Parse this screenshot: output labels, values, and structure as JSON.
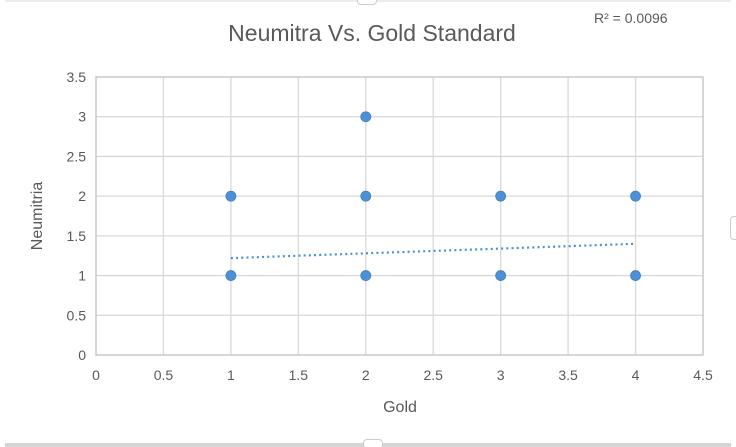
{
  "chart_data": {
    "type": "scatter",
    "title": "Neumitra Vs. Gold Standard",
    "annotation_r2": "R² = 0.0096",
    "xlabel": "Gold",
    "ylabel": "Neumitria",
    "xlim": [
      0,
      4.5
    ],
    "ylim": [
      0,
      3.5
    ],
    "xticks": [
      "0",
      "0.5",
      "1",
      "1.5",
      "2",
      "2.5",
      "3",
      "3.5",
      "4",
      "4.5"
    ],
    "yticks": [
      "0",
      "0.5",
      "1",
      "1.5",
      "2",
      "2.5",
      "3",
      "3.5"
    ],
    "grid": true,
    "legend": false,
    "points": [
      [
        1,
        1
      ],
      [
        1,
        2
      ],
      [
        2,
        1
      ],
      [
        2,
        2
      ],
      [
        2,
        3
      ],
      [
        3,
        1
      ],
      [
        3,
        2
      ],
      [
        4,
        1
      ],
      [
        4,
        2
      ]
    ],
    "trendline": {
      "style": "dotted",
      "x_start": 1,
      "y_start": 1.22,
      "x_end": 4,
      "y_end": 1.4
    },
    "colors": {
      "marker": "#4d90d6",
      "marker_border": "#3f7fc1",
      "trendline": "#4a90d5",
      "gridline": "#d9d9d9",
      "plot_border": "#c9c9c9",
      "text": "#595959"
    }
  }
}
